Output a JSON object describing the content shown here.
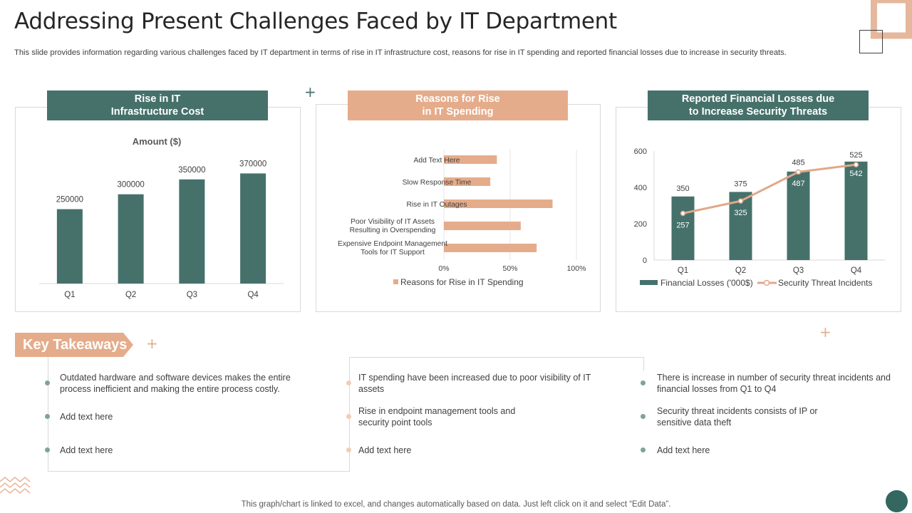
{
  "title": "Addressing Present Challenges Faced by IT Department",
  "subtitle": "This slide provides information regarding various challenges faced by IT department in terms of rise in IT infrastructure cost, reasons for rise in IT spending and reported financial losses due to increase in security threats.",
  "colors": {
    "green": "#46716b",
    "peach": "#e5ac8b",
    "line": "#e0a88a"
  },
  "panels": {
    "left": {
      "line1": "Rise in IT",
      "line2": "Infrastructure Cost"
    },
    "middle": {
      "line1": "Reasons for Rise",
      "line2": "in IT Spending"
    },
    "right": {
      "line1": "Reported Financial Losses due",
      "line2": "to Increase Security Threats"
    }
  },
  "chart_data": [
    {
      "type": "bar",
      "title": "Amount  ($)",
      "categories": [
        "Q1",
        "Q2",
        "Q3",
        "Q4"
      ],
      "values": [
        250000,
        300000,
        350000,
        370000
      ],
      "ylim": [
        0,
        450000
      ]
    },
    {
      "type": "bar",
      "orientation": "horizontal",
      "categories": [
        "Add Text Here",
        "Slow Response Time",
        "Rise in IT Outages",
        "Poor Visibility of IT Assets Resulting in Overspending",
        "Expensive Endpoint Management Tools for IT Support"
      ],
      "values": [
        40,
        35,
        82,
        58,
        70
      ],
      "value_unit": "%",
      "xlim": [
        0,
        100
      ],
      "xticks": [
        "0%",
        "50%",
        "100%"
      ],
      "legend": "Reasons for Rise in IT Spending"
    },
    {
      "type": "bar+line",
      "categories": [
        "Q1",
        "Q2",
        "Q3",
        "Q4"
      ],
      "series": [
        {
          "name": "Financial Losses  ('000$)",
          "kind": "bar",
          "values": [
            350,
            375,
            487,
            542
          ]
        },
        {
          "name": "Security Threat Incidents",
          "kind": "line",
          "values": [
            257,
            325,
            485,
            525
          ]
        }
      ],
      "ylim": [
        0,
        600
      ],
      "yticks": [
        "0",
        "200",
        "400",
        "600"
      ]
    }
  ],
  "key_takeaways": {
    "label": "Key Takeaways",
    "col1": [
      "Outdated hardware  and software devices  makes the entire process inefficient  and making the entire process costly.",
      "Add text here",
      "Add text here"
    ],
    "col2": [
      "IT spending have  been increased due to poor visibility of IT assets",
      "Rise in endpoint  management tools and security point tools",
      "Add text here"
    ],
    "col3": [
      "There is increase in number of security threat incidents and financial losses from Q1 to Q4",
      "Security threat incidents consists of IP or sensitive data theft",
      "Add text here"
    ]
  },
  "footer": "This graph/chart is linked to excel,  and changes automatically based on data. Just left click on it and select “Edit Data”."
}
